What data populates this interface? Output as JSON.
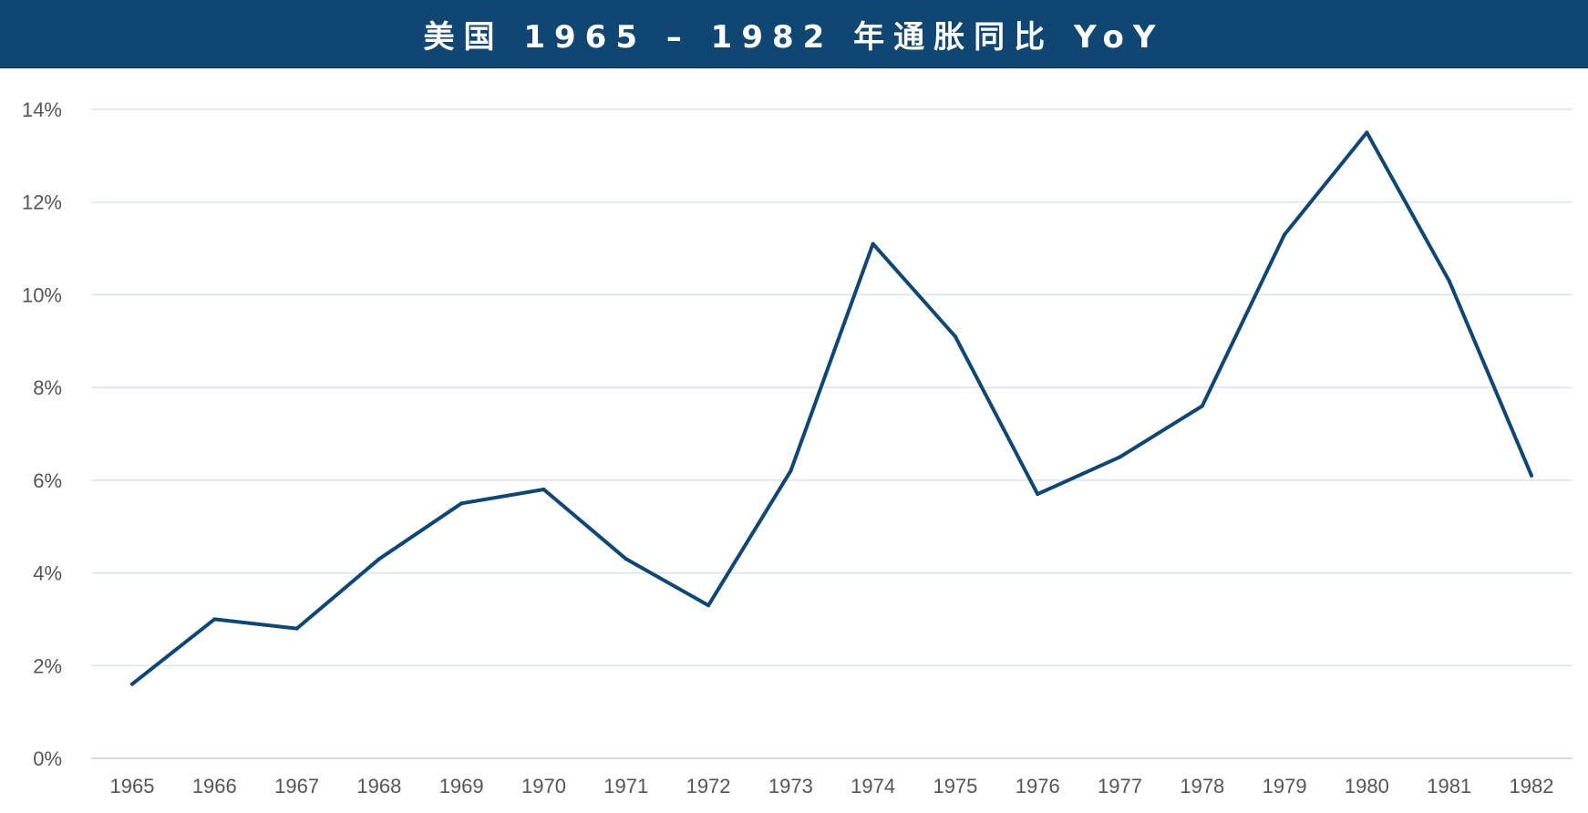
{
  "chart_data": {
    "type": "line",
    "title": "美国 1965 – 1982 年通胀同比 YoY",
    "xlabel": "",
    "ylabel": "",
    "categories": [
      "1965",
      "1966",
      "1967",
      "1968",
      "1969",
      "1970",
      "1971",
      "1972",
      "1973",
      "1974",
      "1975",
      "1976",
      "1977",
      "1978",
      "1979",
      "1980",
      "1981",
      "1982"
    ],
    "series": [
      {
        "values": [
          1.6,
          3.0,
          2.8,
          4.3,
          5.5,
          5.8,
          4.3,
          3.3,
          6.2,
          11.1,
          9.1,
          5.7,
          6.5,
          7.6,
          11.3,
          13.5,
          10.3,
          6.1
        ]
      }
    ],
    "ylim": [
      0,
      14
    ],
    "yticks": [
      0,
      2,
      4,
      6,
      8,
      10,
      12,
      14
    ],
    "ytick_labels": [
      "0%",
      "2%",
      "4%",
      "6%",
      "8%",
      "10%",
      "12%",
      "14%"
    ],
    "grid": true,
    "legend": "none",
    "colors": {
      "line": "#0f4672",
      "title_bg": "#0f4672",
      "grid": "#dde3ea"
    }
  }
}
